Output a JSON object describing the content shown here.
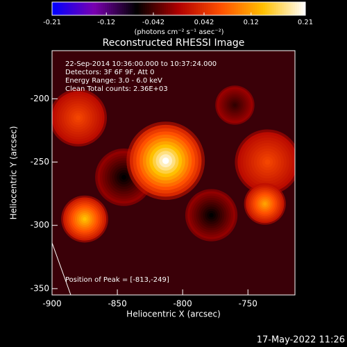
{
  "chart_data": {
    "type": "image",
    "title": "Reconstructed RHESSI Image",
    "xlabel": "Heliocentric X (arcsec)",
    "ylabel": "Heliocentric Y (arcsec)",
    "xlim": [
      -900,
      -714
    ],
    "ylim": [
      -355,
      -162
    ],
    "xticks": [
      -900,
      -850,
      -800,
      -750
    ],
    "yticks": [
      -200,
      -250,
      -300,
      -350
    ],
    "colorbar": {
      "label": "(photons cm⁻² s⁻¹ asec⁻²)",
      "lim": [
        -0.21,
        0.21
      ],
      "ticks": [
        -0.21,
        -0.12,
        -0.042,
        0.042,
        0.12,
        0.21
      ],
      "colormap": [
        "#0000ff",
        "#7a00b0",
        "#000000",
        "#b00000",
        "#ff5000",
        "#ffc000",
        "#ffffff"
      ]
    },
    "annotations": [
      "22-Sep-2014 10:36:00.000 to 10:37:24.000",
      "Detectors: 3F 6F 9F, Att 0",
      "Energy Range: 3.0 - 6.0 keV",
      "Clean     Total counts: 2.36E+03"
    ],
    "peak_label": "Position of Peak = [-813,-249]",
    "footer": "17-May-2022 11:26",
    "sources": [
      {
        "x": -845,
        "y": -262,
        "value": -0.07,
        "size": 22
      },
      {
        "x": -778,
        "y": -292,
        "value": -0.07,
        "size": 20
      },
      {
        "x": -760,
        "y": -205,
        "value": -0.05,
        "size": 15
      },
      {
        "x": -880,
        "y": -215,
        "value": 0.06,
        "size": 22
      },
      {
        "x": -735,
        "y": -250,
        "value": 0.06,
        "size": 25
      },
      {
        "x": -813,
        "y": -249,
        "value": 0.21,
        "size": 30
      },
      {
        "x": -875,
        "y": -295,
        "value": 0.14,
        "size": 18
      },
      {
        "x": -737,
        "y": -283,
        "value": 0.12,
        "size": 16
      }
    ]
  }
}
